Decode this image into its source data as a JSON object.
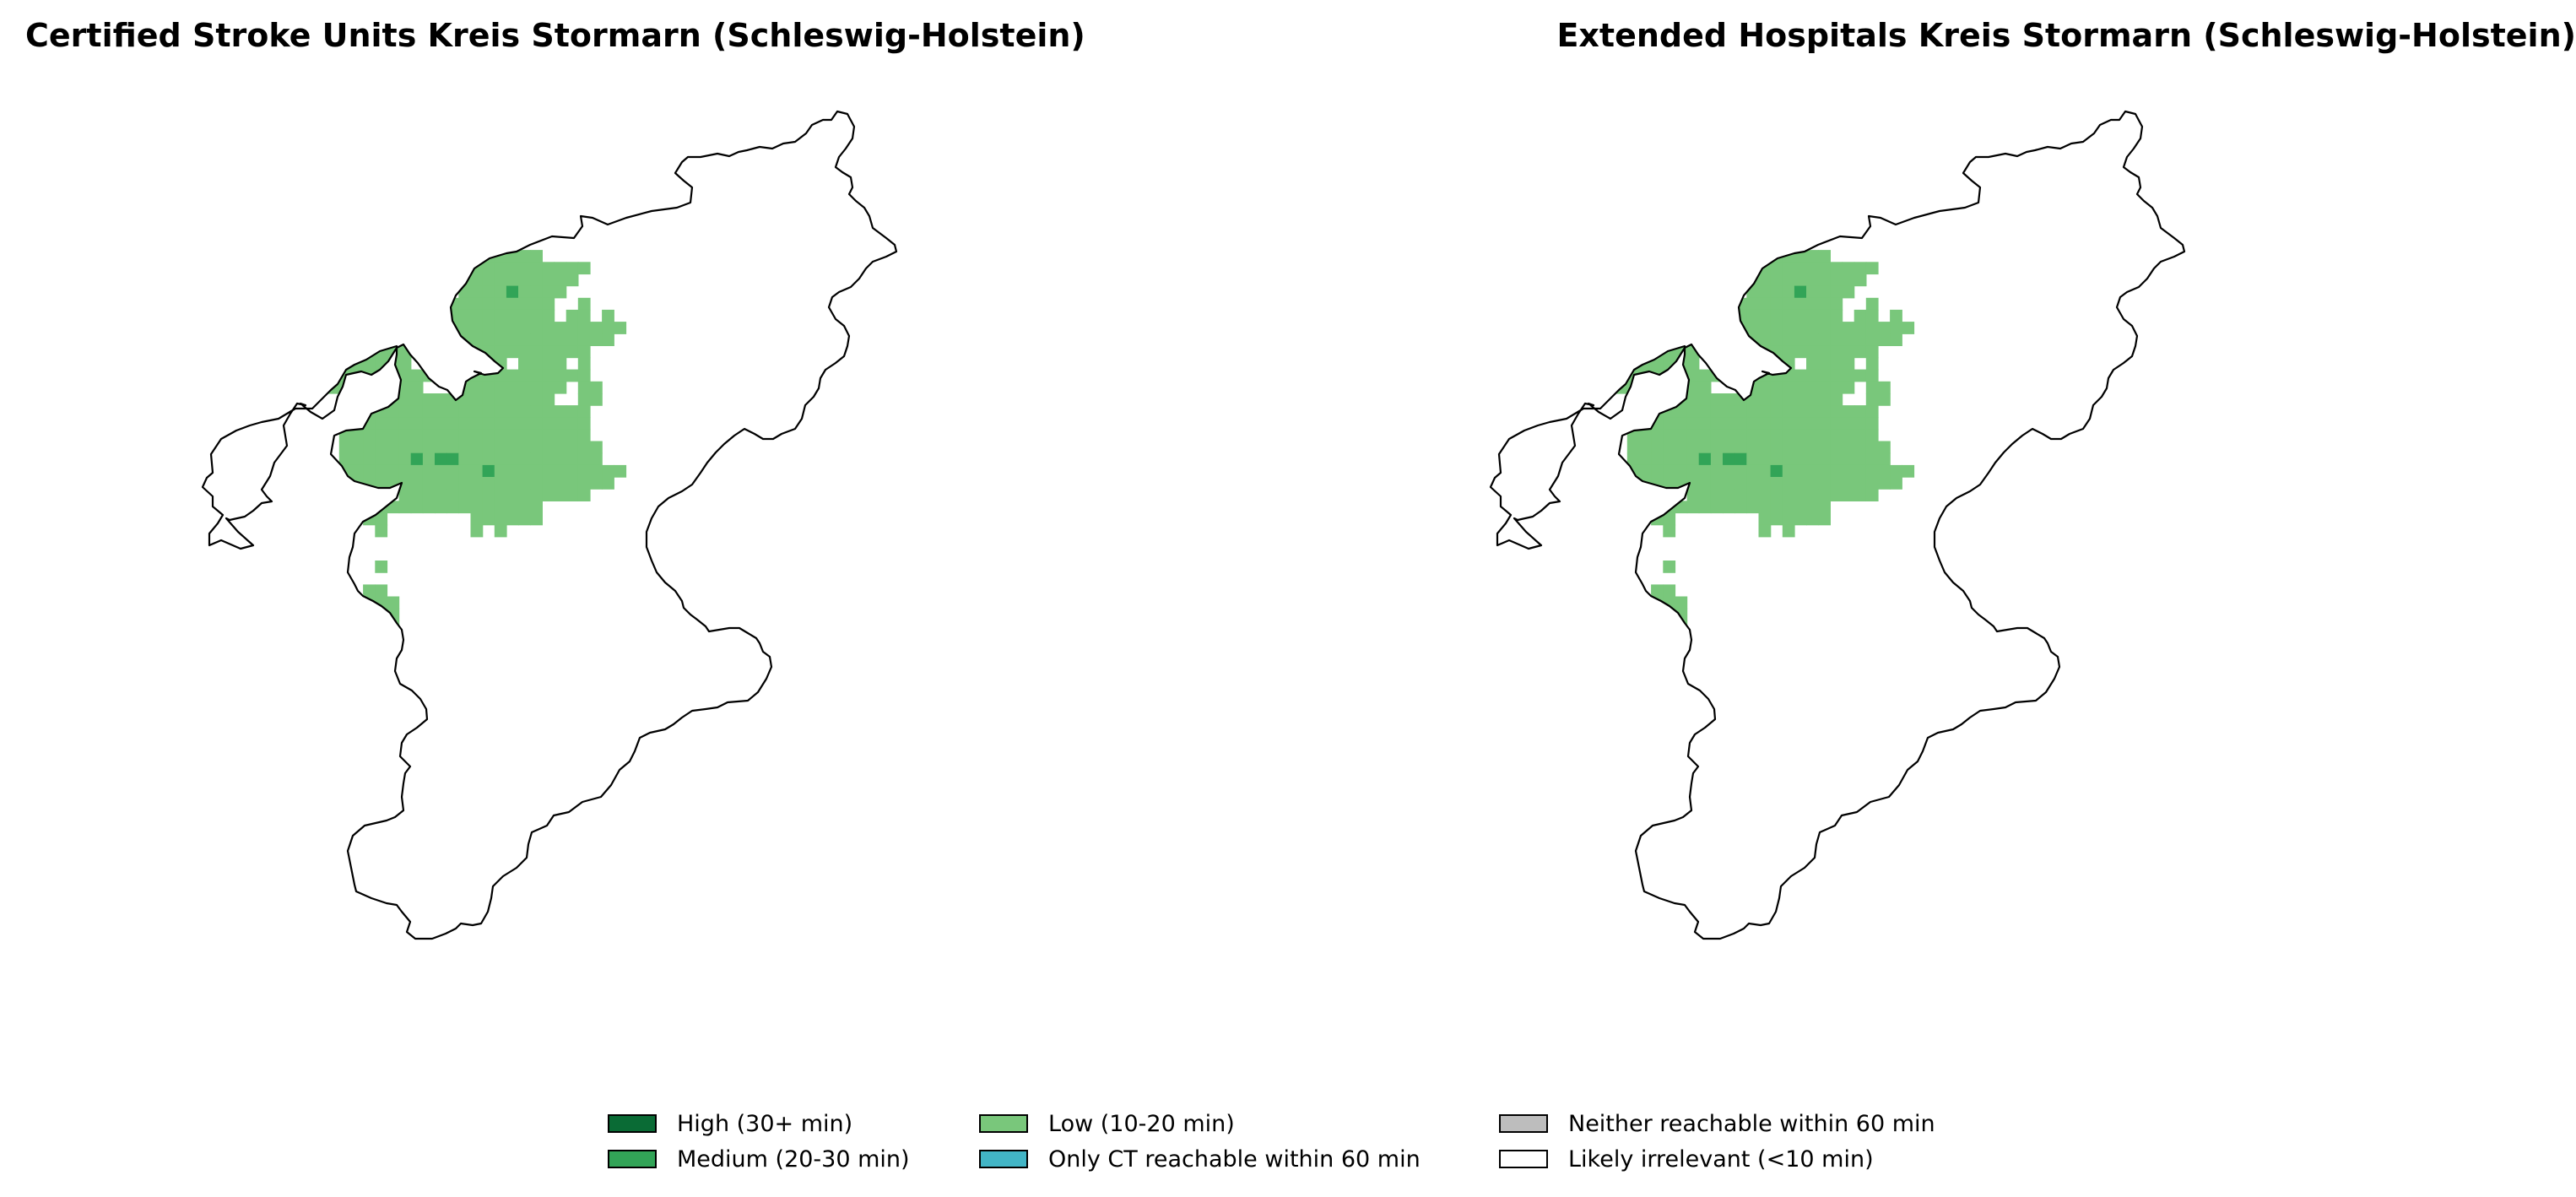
{
  "panels": [
    {
      "title": "Certified Stroke Units Kreis Stormarn (Schleswig-Holstein)"
    },
    {
      "title": "Extended Hospitals Kreis Stormarn (Schleswig-Holstein)"
    }
  ],
  "legend": {
    "items": [
      {
        "label": "High (30+ min)",
        "color": "#0a6b35"
      },
      {
        "label": "Medium (20-30 min)",
        "color": "#32a457"
      },
      {
        "label": "Low (10-20 min)",
        "color": "#79c77b"
      },
      {
        "label": "Only CT reachable within 60 min",
        "color": "#42b5c6"
      },
      {
        "label": "Neither reachable within 60 min",
        "color": "#bdbdbd"
      },
      {
        "label": "Likely irrelevant (<10 min)",
        "color": "#ffffff"
      }
    ]
  },
  "colors": {
    "low": "#79c77b",
    "medium": "#32a457",
    "high": "#0a6b35",
    "boundary": "#000000"
  }
}
